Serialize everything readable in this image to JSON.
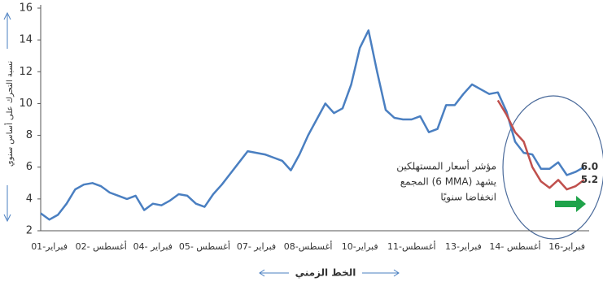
{
  "chart_data": {
    "type": "line",
    "y_label": "نسبة التحرك على أساس سنوي",
    "x_label": "الخط الزمني",
    "annotation": [
      "مؤشر أسعار المستهلكين",
      "المجمع (6 MMA) يشهد",
      "انخفاضا سنويًا"
    ],
    "categories": [
      null,
      "فبراير-01",
      null,
      null,
      null,
      null,
      null,
      "أغسطس -02",
      null,
      null,
      null,
      null,
      null,
      "فبراير -04",
      null,
      null,
      null,
      null,
      null,
      "أغسطس -05",
      null,
      null,
      null,
      null,
      null,
      "فبراير -07",
      null,
      null,
      null,
      null,
      null,
      "أغسطس-08",
      null,
      null,
      null,
      null,
      null,
      "فبراير-10",
      null,
      null,
      null,
      null,
      null,
      "أغسطس-11",
      null,
      null,
      null,
      null,
      null,
      "فبراير-13",
      null,
      null,
      null,
      null,
      null,
      "أغسطس -14",
      null,
      null,
      null,
      null,
      null,
      "فبراير-16",
      null,
      null
    ],
    "series": [
      {
        "color": "#4a7fc1",
        "values": [
          3.1,
          2.7,
          3.0,
          3.7,
          4.6,
          4.9,
          5.0,
          4.8,
          4.4,
          4.2,
          4.0,
          4.2,
          3.3,
          3.7,
          3.6,
          3.9,
          4.3,
          4.2,
          3.7,
          3.5,
          4.3,
          4.9,
          5.6,
          6.3,
          7.0,
          6.9,
          6.8,
          6.6,
          6.4,
          5.8,
          6.8,
          8.0,
          9.0,
          10.0,
          9.4,
          9.7,
          11.2,
          13.5,
          14.6,
          12.0,
          9.6,
          9.1,
          9.0,
          9.0,
          9.2,
          8.2,
          8.4,
          9.9,
          9.9,
          10.6,
          11.2,
          10.9,
          10.6,
          10.7,
          9.5,
          7.6,
          6.9,
          6.8,
          5.9,
          5.9,
          6.3,
          5.5,
          5.7,
          6.0
        ],
        "value_labels": [
          null,
          null,
          null,
          null,
          null,
          null,
          null,
          null,
          null,
          null,
          null,
          null,
          null,
          null,
          null,
          null,
          null,
          null,
          null,
          null,
          null,
          null,
          null,
          null,
          null,
          null,
          null,
          null,
          null,
          null,
          null,
          null,
          null,
          null,
          null,
          null,
          null,
          null,
          null,
          null,
          null,
          null,
          null,
          null,
          null,
          null,
          null,
          null,
          null,
          null,
          null,
          null,
          null,
          null,
          null,
          null,
          null,
          null,
          null,
          null,
          null,
          null,
          null,
          "6.0"
        ]
      },
      {
        "color": "#c0504d",
        "values": [
          null,
          null,
          null,
          null,
          null,
          null,
          null,
          null,
          null,
          null,
          null,
          null,
          null,
          null,
          null,
          null,
          null,
          null,
          null,
          null,
          null,
          null,
          null,
          null,
          null,
          null,
          null,
          null,
          null,
          null,
          null,
          null,
          null,
          null,
          null,
          null,
          null,
          null,
          null,
          null,
          null,
          null,
          null,
          null,
          null,
          null,
          null,
          null,
          null,
          null,
          null,
          null,
          null,
          10.2,
          9.3,
          8.2,
          7.6,
          6.0,
          5.1,
          4.7,
          5.2,
          4.6,
          4.8,
          5.2
        ],
        "value_labels": [
          null,
          null,
          null,
          null,
          null,
          null,
          null,
          null,
          null,
          null,
          null,
          null,
          null,
          null,
          null,
          null,
          null,
          null,
          null,
          null,
          null,
          null,
          null,
          null,
          null,
          null,
          null,
          null,
          null,
          null,
          null,
          null,
          null,
          null,
          null,
          null,
          null,
          null,
          null,
          null,
          null,
          null,
          null,
          null,
          null,
          null,
          null,
          null,
          null,
          null,
          null,
          null,
          null,
          null,
          null,
          null,
          null,
          null,
          null,
          null,
          null,
          null,
          null,
          "5.2"
        ]
      }
    ],
    "ylim": [
      2,
      16
    ],
    "yticks": [
      2,
      4,
      6,
      8,
      10,
      12,
      14,
      16
    ]
  }
}
